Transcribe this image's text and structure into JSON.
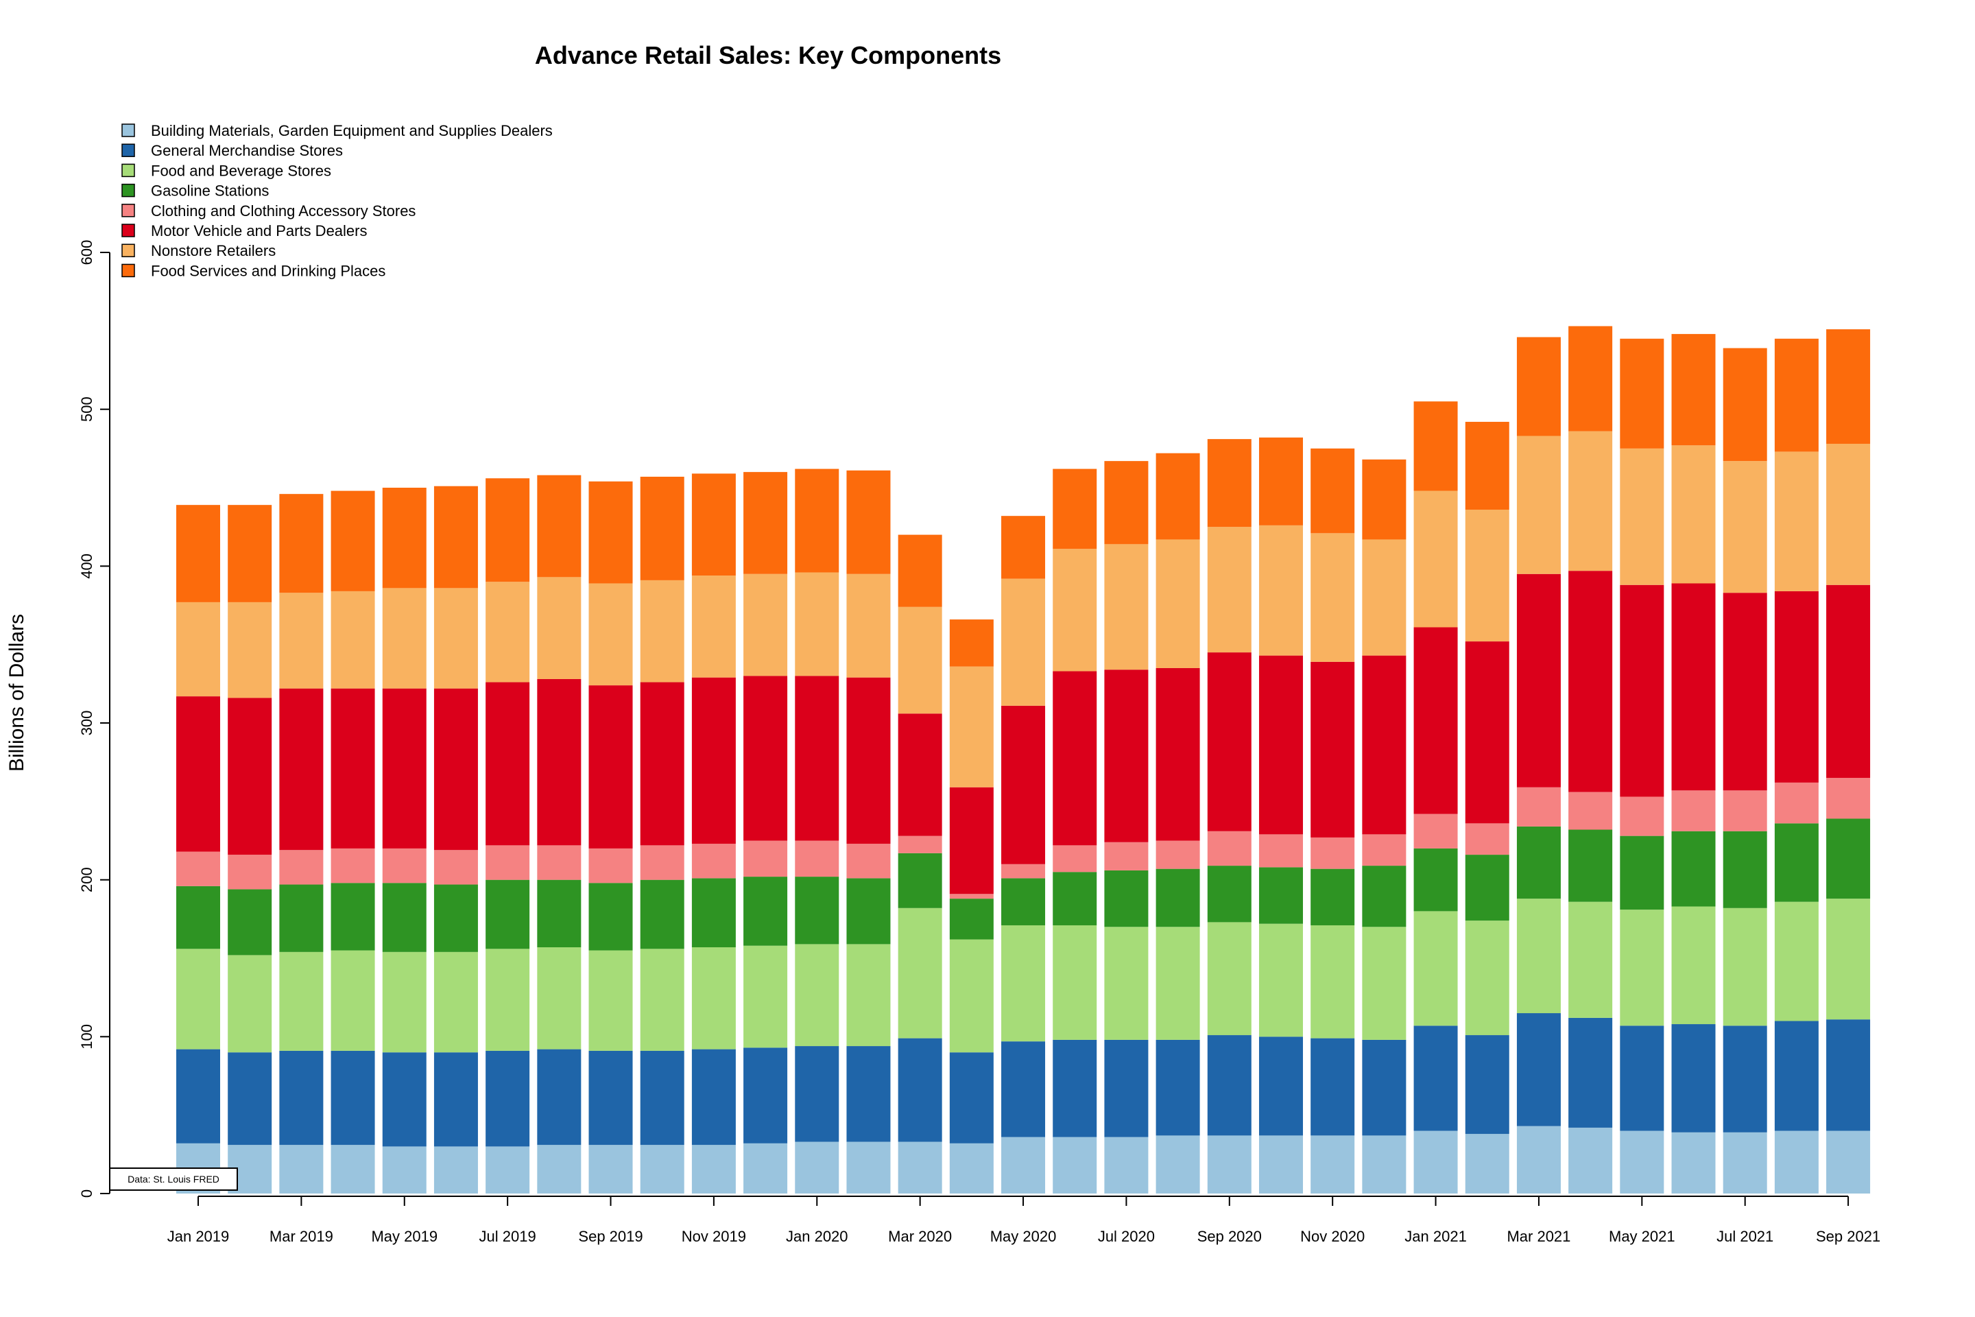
{
  "chart_data": {
    "type": "bar",
    "stacked": true,
    "title": "Advance Retail Sales: Key Components",
    "ylabel": "Billions of Dollars",
    "xlabel": "",
    "ylim": [
      0,
      600
    ],
    "yticks": [
      0,
      100,
      200,
      300,
      400,
      500,
      600
    ],
    "grid": false,
    "legend_position": "top-left",
    "source_note": "Data: St. Louis FRED",
    "categories": [
      "Jan 2019",
      "Feb 2019",
      "Mar 2019",
      "Apr 2019",
      "May 2019",
      "Jun 2019",
      "Jul 2019",
      "Aug 2019",
      "Sep 2019",
      "Oct 2019",
      "Nov 2019",
      "Dec 2019",
      "Jan 2020",
      "Feb 2020",
      "Mar 2020",
      "Apr 2020",
      "May 2020",
      "Jun 2020",
      "Jul 2020",
      "Aug 2020",
      "Sep 2020",
      "Oct 2020",
      "Nov 2020",
      "Dec 2020",
      "Jan 2021",
      "Feb 2021",
      "Mar 2021",
      "Apr 2021",
      "May 2021",
      "Jun 2021",
      "Jul 2021",
      "Aug 2021",
      "Sep 2021"
    ],
    "xtick_labels": [
      "Jan 2019",
      "Mar 2019",
      "May 2019",
      "Jul 2019",
      "Sep 2019",
      "Nov 2019",
      "Jan 2020",
      "Mar 2020",
      "May 2020",
      "Jul 2020",
      "Sep 2020",
      "Nov 2020",
      "Jan 2021",
      "Mar 2021",
      "May 2021",
      "Jul 2021",
      "Sep 2021"
    ],
    "series": [
      {
        "name": "Building Materials, Garden Equipment and Supplies Dealers",
        "color": "#9ac4de",
        "values": [
          32,
          31,
          31,
          31,
          30,
          30,
          30,
          31,
          31,
          31,
          31,
          32,
          33,
          33,
          33,
          32,
          36,
          36,
          36,
          37,
          37,
          37,
          37,
          37,
          40,
          38,
          43,
          42,
          40,
          39,
          39,
          40,
          40
        ]
      },
      {
        "name": "General Merchandise Stores",
        "color": "#1f65a9",
        "values": [
          60,
          59,
          60,
          60,
          60,
          60,
          61,
          61,
          60,
          60,
          61,
          61,
          61,
          61,
          66,
          58,
          61,
          62,
          62,
          61,
          64,
          63,
          62,
          61,
          67,
          63,
          72,
          70,
          67,
          69,
          68,
          70,
          71
        ]
      },
      {
        "name": "Food and Beverage Stores",
        "color": "#a6dc78",
        "values": [
          64,
          62,
          63,
          64,
          64,
          64,
          65,
          65,
          64,
          65,
          65,
          65,
          65,
          65,
          83,
          72,
          74,
          73,
          72,
          72,
          72,
          72,
          72,
          72,
          73,
          73,
          73,
          74,
          74,
          75,
          75,
          76,
          77
        ]
      },
      {
        "name": "Gasoline Stations",
        "color": "#2e9423",
        "values": [
          40,
          42,
          43,
          43,
          44,
          43,
          44,
          43,
          43,
          44,
          44,
          44,
          43,
          42,
          35,
          26,
          30,
          34,
          36,
          37,
          36,
          36,
          36,
          39,
          40,
          42,
          46,
          46,
          47,
          48,
          49,
          50,
          51
        ]
      },
      {
        "name": "Clothing and Clothing Accessory Stores",
        "color": "#f58282",
        "values": [
          22,
          22,
          22,
          22,
          22,
          22,
          22,
          22,
          22,
          22,
          22,
          23,
          23,
          22,
          11,
          3,
          9,
          17,
          18,
          18,
          22,
          21,
          20,
          20,
          22,
          20,
          25,
          24,
          25,
          26,
          26,
          26,
          26
        ]
      },
      {
        "name": "Motor Vehicle and Parts Dealers",
        "color": "#db001b",
        "values": [
          99,
          100,
          103,
          102,
          102,
          103,
          104,
          106,
          104,
          104,
          106,
          105,
          105,
          106,
          78,
          68,
          101,
          111,
          110,
          110,
          114,
          114,
          112,
          114,
          119,
          116,
          136,
          141,
          135,
          132,
          126,
          122,
          123
        ]
      },
      {
        "name": "Nonstore Retailers",
        "color": "#f9b260",
        "values": [
          60,
          61,
          61,
          62,
          64,
          64,
          64,
          65,
          65,
          65,
          65,
          65,
          66,
          66,
          68,
          77,
          81,
          78,
          80,
          82,
          80,
          83,
          82,
          74,
          87,
          84,
          88,
          89,
          87,
          88,
          84,
          89,
          90
        ]
      },
      {
        "name": "Food Services and Drinking Places",
        "color": "#fc6b0c",
        "values": [
          62,
          62,
          63,
          64,
          64,
          65,
          66,
          65,
          65,
          66,
          65,
          65,
          66,
          66,
          46,
          30,
          40,
          51,
          53,
          55,
          56,
          56,
          54,
          51,
          57,
          56,
          63,
          67,
          70,
          71,
          72,
          72,
          73
        ]
      }
    ]
  }
}
